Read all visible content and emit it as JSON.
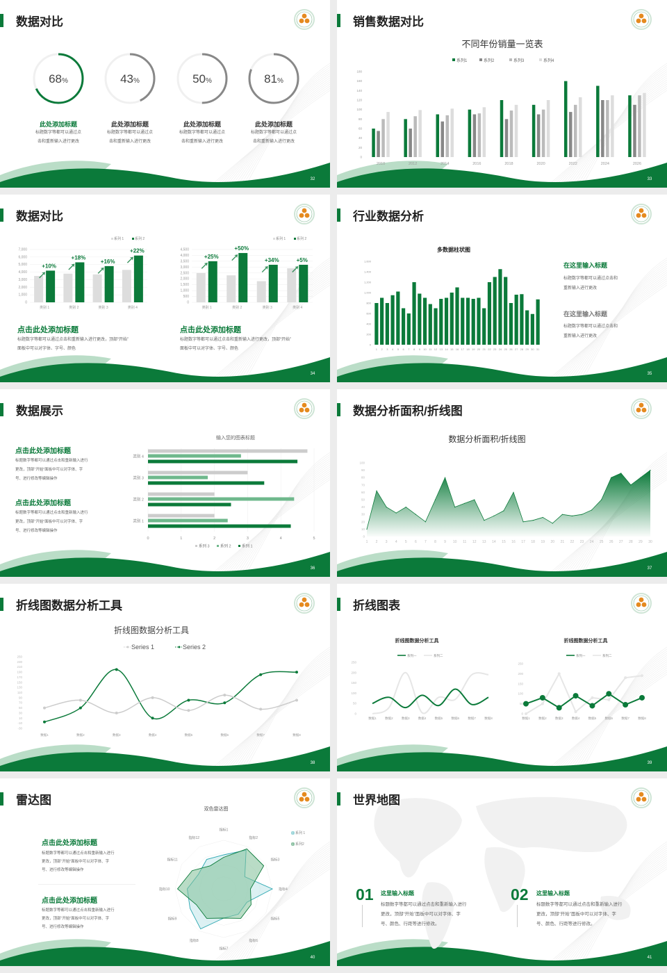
{
  "colors": {
    "brand_green": "#0b7a3a",
    "light_green": "#6fb88c",
    "grey_dark": "#888888",
    "grey_mid": "#bbbbbb",
    "grey_light": "#dddddd",
    "teal": "#2aa6b0"
  },
  "s32": {
    "page": "32",
    "title": "数据对比",
    "rings": [
      {
        "value": 68,
        "unit": "%",
        "title": "此处添加标题",
        "line1": "标题数字等都可以通过点",
        "line2": "击和重新输入进行更改",
        "highlight": true
      },
      {
        "value": 43,
        "unit": "%",
        "title": "此处添加标题",
        "line1": "标题数字等都可以通过点",
        "line2": "击和重新输入进行更改",
        "highlight": false
      },
      {
        "value": 50,
        "unit": "%",
        "title": "此处添加标题",
        "line1": "标题数字等都可以通过点",
        "line2": "击和重新输入进行更改",
        "highlight": false
      },
      {
        "value": 81,
        "unit": "%",
        "title": "此处添加标题",
        "line1": "标题数字等都可以通过点",
        "line2": "击和重新输入进行更改",
        "highlight": false
      }
    ]
  },
  "s33": {
    "page": "33",
    "title": "销售数据对比"
  },
  "s34": {
    "page": "34",
    "title": "数据对比",
    "left_text": {
      "title": "点击此处添加标题",
      "line1": "标题数字等都可以通过点击和重新输入进行更改，顶部“开始”",
      "line2": "面板中可以对字体、字号、颜色"
    },
    "right_text": {
      "title": "点击此处添加标题",
      "line1": "标题数字等都可以通过点击和重新输入进行更改，顶部“开始”",
      "line2": "面板中可以对字体、字号、颜色"
    }
  },
  "s35": {
    "page": "35",
    "title": "行业数据分析",
    "blocks": [
      {
        "title": "在这里输入标题",
        "line1": "标题数字等都可以通过点击和",
        "line2": "重新输入进行更改",
        "active": true
      },
      {
        "title": "在这里输入标题",
        "line1": "标题数字等都可以通过点击和",
        "line2": "重新输入进行更改",
        "active": false
      }
    ]
  },
  "s36": {
    "page": "36",
    "title": "数据展示",
    "blocks": [
      {
        "title": "点击此处添加标题",
        "line1": "标题数字等都可以通过点击和重新输入进行",
        "line2": "更改，顶部“开始”面板中可以对字体、字",
        "line3": "号、进行修改等编辑操作"
      },
      {
        "title": "点击此处添加标题",
        "line1": "标题数字等都可以通过点击和重新输入进行",
        "line2": "更改，顶部“开始”面板中可以对字体、字",
        "line3": "号、进行修改等编辑操作"
      }
    ]
  },
  "s37": {
    "page": "37",
    "title": "数据分析面积/折线图"
  },
  "s38": {
    "page": "38",
    "title": "折线图数据分析工具"
  },
  "s39": {
    "page": "39",
    "title": "折线图表"
  },
  "s40": {
    "page": "40",
    "title": "雷达图",
    "blocks": [
      {
        "title": "点击此处添加标题",
        "line1": "标题数字等都可以通过点击和重新输入进行",
        "line2": "更改，顶部“开始”面板中可以对字体、字",
        "line3": "号、进行修改等编辑操作"
      },
      {
        "title": "点击此处添加标题",
        "line1": "标题数字等都可以通过点击和重新输入进行",
        "line2": "更改，顶部“开始”面板中可以对字体、字",
        "line3": "号、进行修改等编辑操作"
      }
    ]
  },
  "s41": {
    "page": "41",
    "title": "世界地图",
    "blocks": [
      {
        "num": "01",
        "title": "这里输入标题",
        "line1": "标题数字等都可以通过点击和重新输入进行",
        "line2": "更改，顶部“开始”面板中可以对字体、字",
        "line3": "号、颜色、行距等进行修改。"
      },
      {
        "num": "02",
        "title": "这里输入标题",
        "line1": "标题数字等都可以通过点击和重新输入进行",
        "line2": "更改，顶部“开始”面板中可以对字体、字",
        "line3": "号、颜色、行距等进行修改。"
      }
    ]
  },
  "chart_data": [
    {
      "id": "s33",
      "type": "bar",
      "title": "不同年份销量一览表",
      "categories": [
        "2010",
        "2012",
        "2014",
        "2016",
        "2018",
        "2020",
        "2022",
        "2024",
        "2026"
      ],
      "series": [
        {
          "name": "系列1",
          "color": "#0b7a3a",
          "values": [
            60,
            80,
            90,
            100,
            120,
            110,
            160,
            150,
            130
          ]
        },
        {
          "name": "系列2",
          "color": "#888888",
          "values": [
            55,
            60,
            75,
            90,
            80,
            90,
            95,
            120,
            110
          ]
        },
        {
          "name": "系列3",
          "color": "#bbbbbb",
          "values": [
            80,
            86,
            88,
            92,
            98,
            100,
            110,
            120,
            130
          ]
        },
        {
          "name": "系列4",
          "color": "#dddddd",
          "values": [
            95,
            99,
            102,
            105,
            110,
            120,
            126,
            130,
            135
          ]
        }
      ],
      "ylim": [
        0,
        180
      ],
      "yticks": [
        "0",
        "20",
        "40",
        "60",
        "80",
        "100",
        "120",
        "140",
        "160",
        "180"
      ],
      "legend": "top",
      "grid": false
    },
    {
      "id": "s34a",
      "type": "bar",
      "categories": [
        "类别 1",
        "类别 2",
        "类别 3",
        "类别 4"
      ],
      "series": [
        {
          "name": "系列 1",
          "color": "#dddddd",
          "values": [
            3500,
            3800,
            3700,
            4300
          ]
        },
        {
          "name": "系列 2",
          "color": "#0b7a3a",
          "values": [
            4200,
            5300,
            4800,
            6200
          ]
        }
      ],
      "annotations": [
        "+10%",
        "+18%",
        "+16%",
        "+22%"
      ],
      "ylim": [
        0,
        7000
      ],
      "yticks": [
        "0",
        "1,000",
        "2,000",
        "3,000",
        "4,000",
        "5,000",
        "6,000",
        "7,000"
      ],
      "legend": "top-right",
      "grid": true
    },
    {
      "id": "s34b",
      "type": "bar",
      "categories": [
        "类别 1",
        "类别 2",
        "类别 3",
        "类别 4"
      ],
      "series": [
        {
          "name": "系列 1",
          "color": "#dddddd",
          "values": [
            2500,
            2300,
            1800,
            2900
          ]
        },
        {
          "name": "系列 2",
          "color": "#0b7a3a",
          "values": [
            3500,
            4200,
            3200,
            3200
          ]
        }
      ],
      "annotations": [
        "+25%",
        "+50%",
        "+34%",
        "+5%"
      ],
      "ylim": [
        0,
        4500
      ],
      "yticks": [
        "0",
        "500",
        "1,000",
        "1,500",
        "2,000",
        "2,500",
        "3,000",
        "3,500",
        "4,000",
        "4,500"
      ],
      "legend": "top-right",
      "grid": true
    },
    {
      "id": "s35",
      "type": "bar",
      "title": "多数据柱状图",
      "categories": [
        "1",
        "2",
        "3",
        "4",
        "5",
        "6",
        "7",
        "8",
        "9",
        "10",
        "11",
        "12",
        "13",
        "14",
        "15",
        "16",
        "17",
        "18",
        "19",
        "20",
        "21",
        "22",
        "23",
        "24",
        "25",
        "26",
        "27",
        "28",
        "29",
        "30",
        "31"
      ],
      "values": [
        800,
        900,
        800,
        950,
        1020,
        700,
        600,
        1200,
        980,
        900,
        780,
        700,
        880,
        900,
        1000,
        1100,
        900,
        900,
        880,
        900,
        700,
        1200,
        1300,
        1450,
        1300,
        800,
        960,
        970,
        660,
        590,
        870
      ],
      "ylim": [
        0,
        1600
      ],
      "yticks": [
        "0",
        "200",
        "400",
        "600",
        "800",
        "1,000",
        "1,200",
        "1,400",
        "1,600"
      ],
      "grid": false
    },
    {
      "id": "s36",
      "type": "bar",
      "orientation": "horizontal",
      "title": "输入您的图表标题",
      "categories": [
        "类别 1",
        "类别 2",
        "类别 3",
        "类别 4"
      ],
      "series": [
        {
          "name": "系列 1",
          "color": "#0b7a3a",
          "values": [
            4.3,
            2.5,
            3.5,
            4.5
          ]
        },
        {
          "name": "系列 2",
          "color": "#6fb88c",
          "values": [
            2.4,
            4.4,
            1.8,
            2.8
          ]
        },
        {
          "name": "系列 3",
          "color": "#cccccc",
          "values": [
            2,
            2,
            3,
            4.8
          ]
        }
      ],
      "xlim": [
        0,
        5
      ],
      "xticks": [
        "0",
        "1",
        "2",
        "3",
        "4",
        "5"
      ],
      "legend": "bottom",
      "grid": true
    },
    {
      "id": "s37",
      "type": "area",
      "title": "数据分析面积/折线图",
      "categories": [
        "1",
        "2",
        "3",
        "4",
        "5",
        "6",
        "7",
        "8",
        "9",
        "10",
        "11",
        "12",
        "13",
        "14",
        "15",
        "16",
        "17",
        "18",
        "19",
        "20",
        "21",
        "22",
        "23",
        "24",
        "25",
        "26",
        "27",
        "28",
        "29",
        "30"
      ],
      "values": [
        10,
        62,
        40,
        32,
        40,
        30,
        20,
        50,
        80,
        40,
        45,
        50,
        22,
        28,
        35,
        60,
        20,
        22,
        26,
        18,
        30,
        28,
        30,
        36,
        50,
        80,
        86,
        70,
        80,
        90
      ],
      "ylim": [
        0,
        100
      ],
      "yticks": [
        "0",
        "10",
        "20",
        "30",
        "40",
        "50",
        "60",
        "70",
        "80",
        "90",
        "100"
      ],
      "grid": false
    },
    {
      "id": "s38",
      "type": "line",
      "title": "折线图数据分析工具",
      "categories": [
        "数据1",
        "数据2",
        "数据3",
        "数据4",
        "数据5",
        "数据6",
        "数据7",
        "数据8"
      ],
      "series": [
        {
          "name": "Series 1",
          "color": "#cccccc",
          "values": [
            50,
            80,
            30,
            90,
            40,
            100,
            45,
            80
          ]
        },
        {
          "name": "Series 2",
          "color": "#0b7a3a",
          "values": [
            -5,
            50,
            200,
            10,
            80,
            70,
            180,
            190
          ]
        }
      ],
      "ylim": [
        -30,
        250
      ],
      "yticks": [
        "-30",
        "-10",
        "10",
        "30",
        "50",
        "70",
        "90",
        "110",
        "130",
        "150",
        "170",
        "190",
        "210",
        "230",
        "250"
      ],
      "legend": "top",
      "smooth": true
    },
    {
      "id": "s39a",
      "type": "line",
      "title": "折线图数据分析工具",
      "categories": [
        "数据1",
        "数据2",
        "数据3",
        "数据4",
        "数据5",
        "数据6",
        "数据7",
        "数据8"
      ],
      "series": [
        {
          "name": "系列一",
          "color": "#0b7a3a",
          "values": [
            50,
            80,
            30,
            90,
            40,
            120,
            45,
            80
          ]
        },
        {
          "name": "系列二",
          "color": "#e6e6e6",
          "values": [
            0,
            30,
            200,
            5,
            80,
            70,
            190,
            190
          ]
        }
      ],
      "ylim": [
        0,
        250
      ],
      "yticks": [
        "0",
        "50",
        "100",
        "150",
        "200",
        "250"
      ],
      "legend": "top",
      "smooth": true,
      "markers": false
    },
    {
      "id": "s39b",
      "type": "line",
      "title": "折线图数据分析工具",
      "categories": [
        "数据1",
        "数据2",
        "数据3",
        "数据4",
        "数据5",
        "数据6",
        "数据7",
        "数据8"
      ],
      "series": [
        {
          "name": "系列一",
          "color": "#0b7a3a",
          "values": [
            50,
            80,
            30,
            90,
            40,
            100,
            45,
            80
          ]
        },
        {
          "name": "系列二",
          "color": "#e6e6e6",
          "values": [
            0,
            50,
            200,
            10,
            80,
            70,
            180,
            190
          ]
        }
      ],
      "ylim": [
        0,
        250
      ],
      "yticks": [
        "0",
        "50",
        "100",
        "150",
        "200",
        "250"
      ],
      "legend": "top",
      "smooth": false,
      "markers": true
    },
    {
      "id": "s40",
      "type": "radar",
      "title": "双色雷达图",
      "categories": [
        "指标1",
        "指标2",
        "指标3",
        "指标4",
        "指标5",
        "指标6",
        "指标7",
        "指标8",
        "指标9",
        "指标10",
        "指标11",
        "指标12"
      ],
      "series": [
        {
          "name": "系列 1",
          "color": "#2aa6b0",
          "values": [
            70,
            92,
            50,
            100,
            55,
            60,
            60,
            95,
            80,
            75,
            60,
            70
          ]
        },
        {
          "name": "系列2",
          "color": "#0b7a3a",
          "values": [
            65,
            95,
            95,
            55,
            65,
            70,
            60,
            70,
            65,
            95,
            75,
            55
          ]
        }
      ],
      "rlim": [
        0,
        100
      ],
      "legend": "right"
    }
  ]
}
